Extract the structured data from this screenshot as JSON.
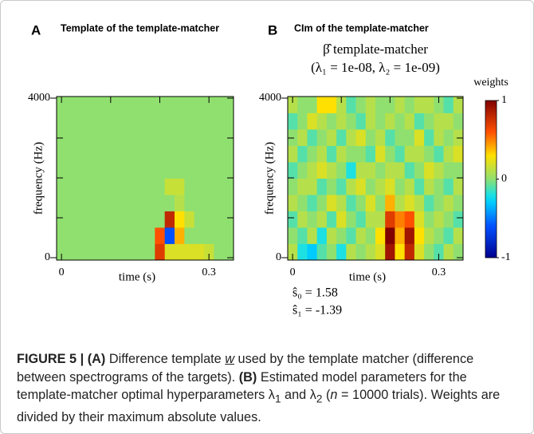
{
  "chart_data": [
    {
      "type": "heatmap",
      "letter": "A",
      "title": "Template of the template-matcher",
      "xlabel": "time (s)",
      "ylabel": "frequency (Hz)",
      "xlim": [
        -0.01,
        0.35
      ],
      "ylim": [
        -60,
        4040
      ],
      "xticks": [
        0,
        0.3
      ],
      "yticks": [
        0,
        4000
      ],
      "xminor": [
        0.1,
        0.2
      ],
      "yminor": [
        1000,
        2000,
        3000
      ],
      "values": [
        [
          0,
          0,
          0,
          0,
          0,
          0,
          0,
          0,
          0,
          0,
          0.7,
          0.2,
          0.2,
          0.2,
          0.2,
          0.15,
          0,
          0
        ],
        [
          0,
          0,
          0,
          0,
          0,
          0,
          0,
          0,
          0,
          0,
          0.6,
          -0.6,
          0.4,
          0,
          0,
          0,
          0,
          0
        ],
        [
          0,
          0,
          0,
          0,
          0,
          0,
          0,
          0,
          0,
          0,
          0,
          0.8,
          0.3,
          0.15,
          0,
          0,
          0,
          0
        ],
        [
          0,
          0,
          0,
          0,
          0,
          0,
          0,
          0,
          0,
          0,
          0,
          0,
          0.1,
          0,
          0,
          0,
          0,
          0
        ],
        [
          0,
          0,
          0,
          0,
          0,
          0,
          0,
          0,
          0,
          0,
          0,
          0.15,
          0.15,
          0,
          0,
          0,
          0,
          0
        ],
        [
          0,
          0,
          0,
          0,
          0,
          0,
          0,
          0,
          0,
          0,
          0,
          0,
          0,
          0,
          0,
          0,
          0,
          0
        ],
        [
          0,
          0,
          0,
          0,
          0,
          0,
          0,
          0,
          0,
          0,
          0,
          0,
          0,
          0,
          0,
          0,
          0,
          0
        ],
        [
          0,
          0,
          0,
          0,
          0,
          0,
          0,
          0,
          0,
          0,
          0,
          0,
          0,
          0,
          0,
          0,
          0,
          0
        ],
        [
          0,
          0,
          0,
          0,
          0,
          0,
          0,
          0,
          0,
          0,
          0,
          0,
          0,
          0,
          0,
          0,
          0,
          0
        ],
        [
          0,
          0,
          0,
          0,
          0,
          0,
          0,
          0,
          0,
          0,
          0,
          0,
          0,
          0,
          0,
          0,
          0,
          0
        ]
      ]
    },
    {
      "type": "heatmap",
      "letter": "B",
      "title": "CIm of the template-matcher",
      "subtitle": [
        "β̂ template-matcher",
        "(λ₁ = 1e-08, λ₂ = 1e-09)"
      ],
      "xlabel": "time (s)",
      "ylabel": "frequency (Hz)",
      "xlim": [
        -0.01,
        0.35
      ],
      "ylim": [
        -60,
        4040
      ],
      "xticks": [
        0,
        0.3
      ],
      "yticks": [
        0,
        4000
      ],
      "xminor": [
        0.1,
        0.2
      ],
      "yminor": [
        1000,
        2000,
        3000
      ],
      "colorbar": {
        "label": "weights",
        "lim": [
          -1,
          1
        ],
        "ticks": [
          1,
          0,
          -1
        ]
      },
      "annotations": [
        "ŝ₀ = 1.58",
        "ŝ₁ = -1.39"
      ],
      "values": [
        [
          0.1,
          -0.2,
          -0.3,
          -0.1,
          0.0,
          -0.2,
          0.1,
          0.0,
          0.1,
          0.2,
          0.9,
          0.3,
          0.8,
          0.2,
          0.0,
          -0.1,
          0.1,
          0.0
        ],
        [
          0.0,
          -0.1,
          0.1,
          -0.2,
          0.1,
          0.0,
          -0.1,
          0.1,
          0.0,
          0.3,
          1.0,
          0.4,
          0.9,
          0.3,
          0.1,
          0.0,
          -0.1,
          0.1
        ],
        [
          -0.1,
          0.1,
          0.0,
          0.1,
          -0.1,
          0.2,
          0.0,
          -0.1,
          0.1,
          0.1,
          0.7,
          0.5,
          0.6,
          0.2,
          0.0,
          0.1,
          0.0,
          -0.1
        ],
        [
          0.1,
          0.0,
          -0.1,
          0.0,
          0.2,
          0.1,
          -0.1,
          0.0,
          0.2,
          0.0,
          0.4,
          0.1,
          0.2,
          0.1,
          -0.1,
          0.0,
          0.1,
          0.0
        ],
        [
          0.0,
          0.1,
          0.1,
          -0.1,
          0.0,
          -0.1,
          0.1,
          0.2,
          0.0,
          0.1,
          0.2,
          0.0,
          0.1,
          -0.1,
          0.1,
          0.0,
          -0.1,
          0.1
        ],
        [
          -0.1,
          0.0,
          0.1,
          0.2,
          0.1,
          0.0,
          -0.2,
          0.1,
          0.1,
          0.0,
          0.1,
          0.1,
          -0.1,
          0.0,
          0.2,
          0.1,
          0.0,
          0.0
        ],
        [
          0.1,
          -0.1,
          0.0,
          0.1,
          -0.1,
          0.1,
          0.0,
          0.0,
          -0.1,
          0.2,
          0.0,
          -0.1,
          0.1,
          0.1,
          0.0,
          -0.1,
          0.1,
          0.2
        ],
        [
          0.0,
          0.1,
          -0.1,
          0.0,
          0.1,
          -0.1,
          0.1,
          0.2,
          0.0,
          0.1,
          -0.1,
          0.0,
          0.0,
          0.2,
          -0.1,
          0.1,
          0.0,
          0.1
        ],
        [
          -0.1,
          0.0,
          0.2,
          0.1,
          0.0,
          0.1,
          0.0,
          -0.1,
          0.1,
          0.0,
          0.1,
          0.0,
          0.1,
          -0.1,
          0.0,
          0.1,
          0.1,
          0.0
        ],
        [
          0.1,
          0.0,
          0.0,
          0.3,
          0.3,
          0.1,
          -0.1,
          0.0,
          0.1,
          0.0,
          0.0,
          0.1,
          0.0,
          0.1,
          0.1,
          0.0,
          -0.1,
          0.1
        ]
      ]
    }
  ],
  "caption": [
    "FIGURE 5 | ",
    "(A)",
    " Difference template ",
    "w",
    " used by the template matcher (difference between spectrograms of the targets). ",
    "(B)",
    " Estimated model parameters for the template-matcher optimal hyperparameters λ",
    "1",
    " and λ",
    "2",
    " (",
    "n",
    " = 10000 trials). Weights are divided by their maximum absolute values."
  ]
}
